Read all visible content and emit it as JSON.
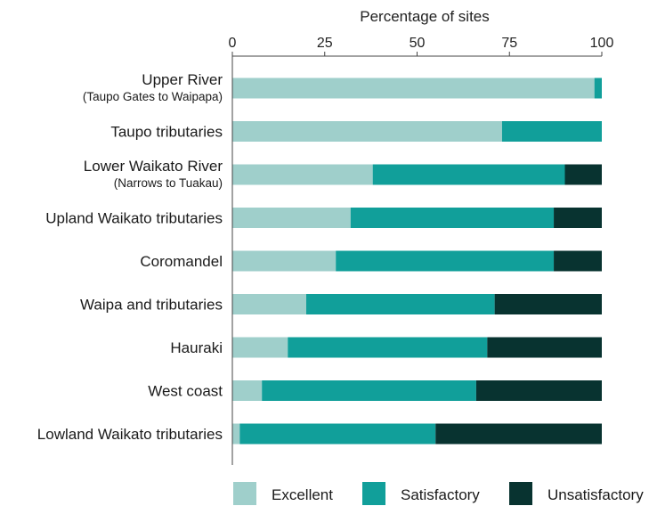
{
  "chart_data": {
    "type": "bar",
    "orientation": "horizontal",
    "stacked": true,
    "title": "",
    "xlabel": "Percentage of sites",
    "ylabel": "",
    "xlim": [
      0,
      100
    ],
    "x_ticks": [
      0,
      25,
      50,
      75,
      100
    ],
    "x_tick_labels": [
      "0",
      "25",
      "50",
      "75",
      "100"
    ],
    "x_axis_position": "top",
    "grid": false,
    "legend_position": "bottom",
    "categories": [
      {
        "name": "Upper River",
        "sub": "(Taupo Gates to Waipapa)"
      },
      {
        "name": "Taupo tributaries",
        "sub": ""
      },
      {
        "name": "Lower Waikato River",
        "sub": "(Narrows to Tuakau)"
      },
      {
        "name": "Upland Waikato tributaries",
        "sub": ""
      },
      {
        "name": "Coromandel",
        "sub": ""
      },
      {
        "name": "Waipa and tributaries",
        "sub": ""
      },
      {
        "name": "Hauraki",
        "sub": ""
      },
      {
        "name": "West coast",
        "sub": ""
      },
      {
        "name": "Lowland Waikato tributaries",
        "sub": ""
      }
    ],
    "series": [
      {
        "name": "Excellent",
        "color": "#9fcfcb",
        "values": [
          98,
          73,
          38,
          32,
          28,
          20,
          15,
          8,
          2
        ]
      },
      {
        "name": "Satisfactory",
        "color": "#119f9a",
        "values": [
          2,
          27,
          52,
          55,
          59,
          51,
          54,
          58,
          53
        ]
      },
      {
        "name": "Unsatisfactory",
        "color": "#083330",
        "values": [
          0,
          0,
          10,
          13,
          13,
          29,
          31,
          34,
          45
        ]
      }
    ]
  }
}
